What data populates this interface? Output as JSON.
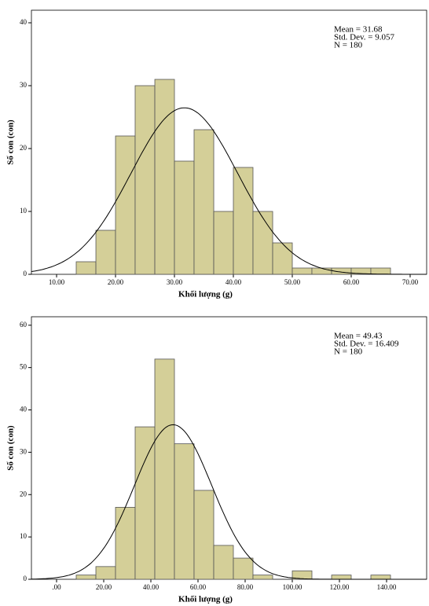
{
  "chart_data": [
    {
      "type": "histogram",
      "x_label": "Khối lượng (g)",
      "y_label": "Số con (con)",
      "stats": [
        "Mean = 31.68",
        "Std. Dev. = 9.057",
        "N = 180"
      ],
      "curve": {
        "mean": 31.68,
        "sd": 9.057,
        "n": 180
      },
      "bins": [
        13.33,
        16.67,
        20,
        23.33,
        26.67,
        30,
        33.33,
        36.67,
        40,
        43.33,
        46.67,
        50,
        53.33,
        56.67,
        60,
        63.33,
        66.67
      ],
      "values": [
        2,
        7,
        22,
        30,
        31,
        18,
        23,
        10,
        17,
        10,
        5,
        1,
        1,
        1,
        1,
        1
      ],
      "color": "#d4cf98",
      "xlim": [
        5.73,
        72.8
      ],
      "ylim": [
        0,
        42
      ],
      "xticks": [
        {
          "value": 10,
          "label": "10.00"
        },
        {
          "value": 20,
          "label": "20.00"
        },
        {
          "value": 30,
          "label": "30.00"
        },
        {
          "value": 40,
          "label": "40.00"
        },
        {
          "value": 50,
          "label": "50.00"
        },
        {
          "value": 60,
          "label": "60.00"
        },
        {
          "value": 70,
          "label": "70.00"
        }
      ],
      "yticks": [
        0,
        10,
        20,
        30,
        40
      ]
    },
    {
      "type": "histogram",
      "x_label": "Khối lượng (g)",
      "y_label": "Số con (con)",
      "stats": [
        "Mean = 49.43",
        "Std. Dev. = 16.409",
        "N = 180"
      ],
      "curve": {
        "mean": 49.43,
        "sd": 16.409,
        "n": 180
      },
      "bins": [
        8.33,
        16.67,
        25,
        33.33,
        41.67,
        50,
        58.33,
        66.67,
        75,
        83.33,
        91.67,
        100,
        108.33,
        116.67,
        125,
        133.33,
        141.67
      ],
      "values": [
        1,
        3,
        17,
        36,
        52,
        32,
        21,
        8,
        5,
        1,
        0,
        2,
        0,
        1,
        0,
        1
      ],
      "color": "#d4cf98",
      "xlim": [
        -10.67,
        157
      ],
      "ylim": [
        0,
        62
      ],
      "xticks": [
        {
          "value": 0,
          "label": ".00"
        },
        {
          "value": 20,
          "label": "20.00"
        },
        {
          "value": 40,
          "label": "40.00"
        },
        {
          "value": 60,
          "label": "60.00"
        },
        {
          "value": 80,
          "label": "80.00"
        },
        {
          "value": 100,
          "label": "100.00"
        },
        {
          "value": 120,
          "label": "120.00"
        },
        {
          "value": 140,
          "label": "140.00"
        }
      ],
      "yticks": [
        0,
        10,
        20,
        30,
        40,
        50,
        60
      ]
    }
  ]
}
